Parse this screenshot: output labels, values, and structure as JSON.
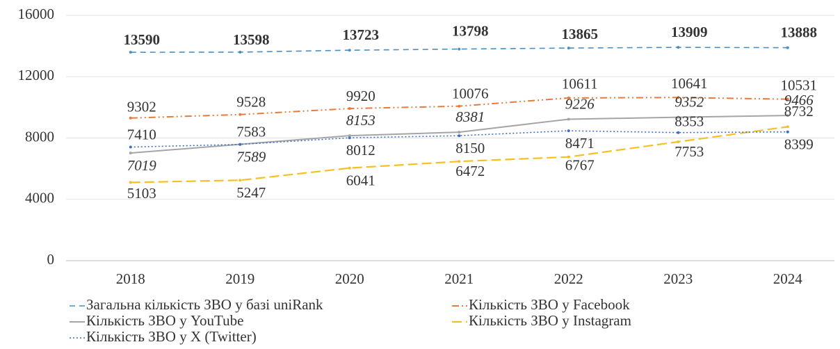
{
  "chart_data": {
    "type": "line",
    "categories": [
      "2018",
      "2019",
      "2020",
      "2021",
      "2022",
      "2023",
      "2024"
    ],
    "series": [
      {
        "name": "Загальна кількість ЗВО у базі uniRank",
        "color": "#4a8fc0",
        "values": [
          13590,
          13598,
          13723,
          13798,
          13865,
          13909,
          13888
        ]
      },
      {
        "name": "Кількість ЗВО у Facebook",
        "color": "#e87a3c",
        "values": [
          9302,
          9528,
          9920,
          10076,
          10611,
          10641,
          10531
        ]
      },
      {
        "name": "Кількість ЗВО у YouTube",
        "color": "#a5a5a5",
        "values": [
          7019,
          7589,
          8153,
          8381,
          9226,
          9352,
          9466
        ]
      },
      {
        "name": "Кількість ЗВО у Instagram",
        "color": "#f5c020",
        "values": [
          5103,
          5247,
          6041,
          6472,
          6767,
          7753,
          8732
        ]
      },
      {
        "name": "Кількість ЗВО у  X (Twitter)",
        "color": "#3d6fc0",
        "values": [
          7410,
          7583,
          8012,
          8150,
          8471,
          8353,
          8399
        ]
      }
    ],
    "ylim": [
      0,
      16000
    ],
    "yticks": [
      0,
      4000,
      8000,
      12000,
      16000
    ],
    "grid": true
  }
}
